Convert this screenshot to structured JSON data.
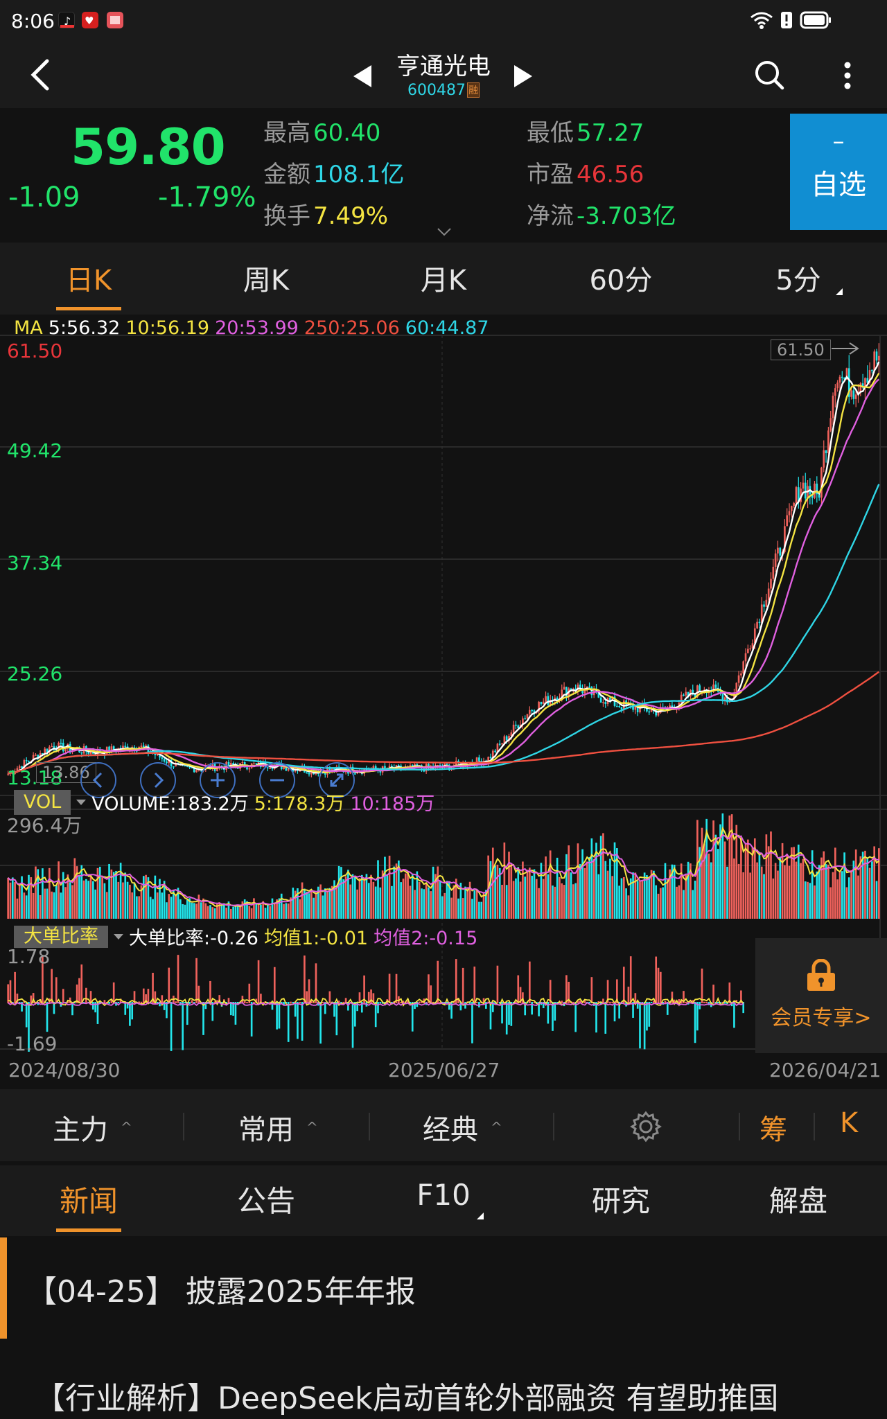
{
  "status_bar": {
    "time": "8:06",
    "app_icons": [
      "douyin-icon",
      "health-icon",
      "reader-icon"
    ],
    "system_icons": [
      "wifi-icon",
      "sim-alert-icon",
      "battery-icon"
    ]
  },
  "header": {
    "stock_name": "亨通光电",
    "stock_code": "600487",
    "margin_badge": "融",
    "back_icon": "chevron-left-icon",
    "prev_icon": "triangle-left-icon",
    "next_icon": "triangle-right-icon",
    "search_icon": "search-icon",
    "more_icon": "more-vertical-icon"
  },
  "quote": {
    "price": "59.80",
    "change": "-1.09",
    "change_pct": "-1.79%",
    "stats": [
      {
        "label": "最高",
        "value": "60.40",
        "color": "#21e36a"
      },
      {
        "label": "金额",
        "value": "108.1亿",
        "color": "#2fd6e6"
      },
      {
        "label": "换手",
        "value": "7.49%",
        "color": "#f4e442"
      },
      {
        "label": "最低",
        "value": "57.27",
        "color": "#21e36a"
      },
      {
        "label": "市盈",
        "value": "46.56",
        "color": "#e8353a"
      },
      {
        "label": "净流",
        "value": "-3.703亿",
        "color": "#21e36a"
      }
    ],
    "watchlist_button": {
      "symbol": "–",
      "label": "自选"
    }
  },
  "period_tabs": [
    {
      "label": "日K",
      "active": true
    },
    {
      "label": "周K",
      "active": false
    },
    {
      "label": "月K",
      "active": false
    },
    {
      "label": "60分",
      "active": false
    },
    {
      "label": "5分",
      "active": false,
      "has_menu": true
    }
  ],
  "ma_legend": {
    "title": "MA",
    "items": [
      {
        "label": "5:56.32",
        "color": "#ffffff"
      },
      {
        "label": "10:56.19",
        "color": "#f4e442"
      },
      {
        "label": "20:53.99",
        "color": "#e060e0"
      },
      {
        "label": "250:25.06",
        "color": "#f05040"
      },
      {
        "label": "60:44.87",
        "color": "#2fd6e6"
      }
    ]
  },
  "price_axis": {
    "labels": [
      "61.50",
      "49.42",
      "37.34",
      "25.26",
      "13.18"
    ],
    "max_marker": "61.50",
    "min_marker": "13.86"
  },
  "chart_controls": [
    "scroll-left-icon",
    "scroll-right-icon",
    "zoom-in-icon",
    "zoom-out-icon",
    "fullscreen-icon"
  ],
  "volume_indicator": {
    "tag": "VOL",
    "volume": "VOLUME:183.2万",
    "ma5": "5:178.3万",
    "ma10": "10:185万",
    "max_label": "296.4万"
  },
  "bigorder_indicator": {
    "tag": "大单比率",
    "value": "大单比率:-0.26",
    "avg1": "均值1:-0.01",
    "avg2": "均值2:-0.15",
    "max_label": "1.78",
    "min_label": "-1.69",
    "vip_label": "会员专享>"
  },
  "date_axis": [
    "2024/08/30",
    "2025/06/27",
    "2026/04/21"
  ],
  "tool_tabs": [
    {
      "label": "主力",
      "has_caret": true
    },
    {
      "label": "常用",
      "has_caret": true
    },
    {
      "label": "经典",
      "has_caret": true
    },
    {
      "label": "settings",
      "icon": "gear-icon"
    },
    {
      "label": "筹",
      "color": "#f0932b"
    },
    {
      "label": "K",
      "color": "#f0932b"
    }
  ],
  "news_tabs": [
    {
      "label": "新闻",
      "active": true
    },
    {
      "label": "公告",
      "active": false
    },
    {
      "label": "F10",
      "active": false,
      "has_menu": true
    },
    {
      "label": "研究",
      "active": false
    },
    {
      "label": "解盘",
      "active": false
    }
  ],
  "news": [
    {
      "text": "【04-25】 披露2025年年报",
      "highlighted": true
    },
    {
      "text": "【行业解析】DeepSeek启动首轮外部融资 有望助推国",
      "highlighted": false
    }
  ],
  "colors": {
    "up": "#f0625c",
    "down": "#22e6ec",
    "accent": "#f0932b",
    "watch_button": "#118ed2"
  },
  "chart_data": {
    "type": "line",
    "title": "亨通光电 600487 日K",
    "x_start": "2024/08/30",
    "x_mid": "2025/06/27",
    "x_end": "2026/04/21",
    "ylim": [
      13.18,
      61.5
    ],
    "y_ticks": [
      61.5,
      49.42,
      37.34,
      25.26,
      13.18
    ],
    "period_high": 61.5,
    "period_low": 13.86,
    "close_approx": {
      "x": [
        0,
        0.05,
        0.1,
        0.15,
        0.2,
        0.25,
        0.3,
        0.35,
        0.4,
        0.45,
        0.5,
        0.55,
        0.6,
        0.65,
        0.7,
        0.75,
        0.8,
        0.83,
        0.86,
        0.89,
        0.91,
        0.93,
        0.95,
        0.97,
        1.0
      ],
      "y": [
        14.5,
        17.5,
        16.8,
        17.5,
        15.0,
        15.3,
        15.5,
        14.8,
        14.9,
        15.0,
        15.2,
        16.0,
        21.5,
        24.0,
        22.0,
        21.2,
        24.0,
        22.5,
        31.0,
        40.0,
        46.0,
        44.5,
        58.0,
        56.5,
        59.8
      ]
    },
    "series": [
      {
        "name": "MA5",
        "last": 56.32,
        "color": "#ffffff"
      },
      {
        "name": "MA10",
        "last": 56.19,
        "color": "#f4e442"
      },
      {
        "name": "MA20",
        "last": 53.99,
        "color": "#e060e0"
      },
      {
        "name": "MA60",
        "last": 44.87,
        "color": "#2fd6e6"
      },
      {
        "name": "MA250",
        "last": 25.06,
        "color": "#f05040"
      }
    ],
    "volume": {
      "max_label": "296.4万",
      "last": "183.2万",
      "ma5": "178.3万",
      "ma10": "185万"
    },
    "bigorder_ratio": {
      "ylim": [
        -1.69,
        1.78
      ],
      "last": -0.26,
      "avg1": -0.01,
      "avg2": -0.15
    }
  }
}
